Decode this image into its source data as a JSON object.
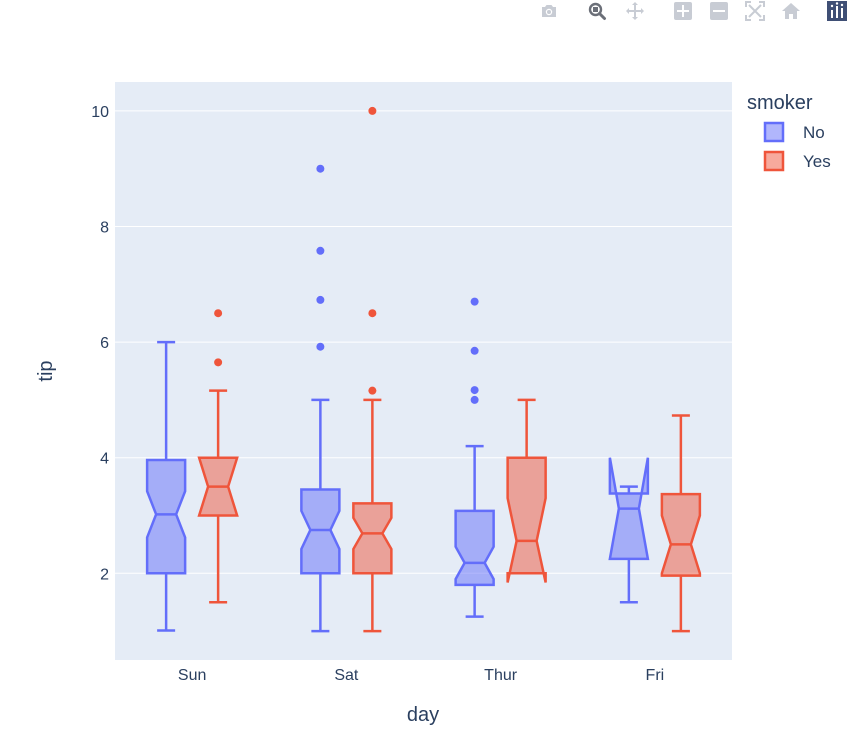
{
  "modebar": {
    "buttons": [
      {
        "name": "camera-icon",
        "title": "Download plot as a png"
      },
      {
        "name": "zoom-icon",
        "title": "Zoom"
      },
      {
        "name": "pan-icon",
        "title": "Pan"
      },
      {
        "name": "zoom-in-icon",
        "title": "Zoom in"
      },
      {
        "name": "zoom-out-icon",
        "title": "Zoom out"
      },
      {
        "name": "autoscale-icon",
        "title": "Autoscale"
      },
      {
        "name": "home-icon",
        "title": "Reset axes"
      },
      {
        "name": "plotly-logo-icon",
        "title": "Produced with Plotly"
      }
    ]
  },
  "chart_data": {
    "type": "box",
    "notched": true,
    "xlabel": "day",
    "ylabel": "tip",
    "ylim": [
      0.5,
      10.5
    ],
    "yticks": [
      2,
      4,
      6,
      8,
      10
    ],
    "categories": [
      "Sun",
      "Sat",
      "Thur",
      "Fri"
    ],
    "legend": {
      "title": "smoker",
      "position": "top-right"
    },
    "series": [
      {
        "name": "No",
        "color": "#636efa",
        "fill": "rgba(99,110,250,0.5)",
        "boxes": [
          {
            "category": "Sun",
            "lowerfence": 1.01,
            "q1": 2.0,
            "median": 3.02,
            "q3": 3.96,
            "upperfence": 6.0,
            "notch_low": 2.62,
            "notch_high": 3.42,
            "outliers": []
          },
          {
            "category": "Sat",
            "lowerfence": 1.0,
            "q1": 2.0,
            "median": 2.75,
            "q3": 3.45,
            "upperfence": 5.0,
            "notch_low": 2.42,
            "notch_high": 3.08,
            "outliers": [
              9.0,
              7.58,
              6.73,
              5.92
            ]
          },
          {
            "category": "Thur",
            "lowerfence": 1.25,
            "q1": 1.8,
            "median": 2.18,
            "q3": 3.08,
            "upperfence": 4.2,
            "notch_low": 1.9,
            "notch_high": 2.46,
            "outliers": [
              6.7,
              5.85,
              5.17,
              5.0
            ]
          },
          {
            "category": "Fri",
            "lowerfence": 1.5,
            "q1": 2.25,
            "median": 3.12,
            "q3": 3.38,
            "upperfence": 3.5,
            "notch_low": 2.25,
            "notch_high": 4.0,
            "outliers": []
          }
        ]
      },
      {
        "name": "Yes",
        "color": "#ef553b",
        "fill": "rgba(239,85,59,0.5)",
        "boxes": [
          {
            "category": "Sun",
            "lowerfence": 1.5,
            "q1": 3.0,
            "median": 3.5,
            "q3": 4.0,
            "upperfence": 5.16,
            "notch_low": 3.0,
            "notch_high": 4.0,
            "outliers": [
              6.5,
              5.65
            ]
          },
          {
            "category": "Sat",
            "lowerfence": 1.0,
            "q1": 2.0,
            "median": 2.69,
            "q3": 3.21,
            "upperfence": 5.0,
            "notch_low": 2.42,
            "notch_high": 2.96,
            "outliers": [
              10.0,
              6.5,
              5.16
            ]
          },
          {
            "category": "Thur",
            "lowerfence": 2.0,
            "q1": 2.0,
            "median": 2.56,
            "q3": 4.0,
            "upperfence": 5.0,
            "notch_low": 1.84,
            "notch_high": 3.3,
            "outliers": []
          },
          {
            "category": "Fri",
            "lowerfence": 1.0,
            "q1": 1.96,
            "median": 2.5,
            "q3": 3.37,
            "upperfence": 4.73,
            "notch_low": 2.0,
            "notch_high": 3.0,
            "outliers": []
          }
        ]
      }
    ]
  }
}
